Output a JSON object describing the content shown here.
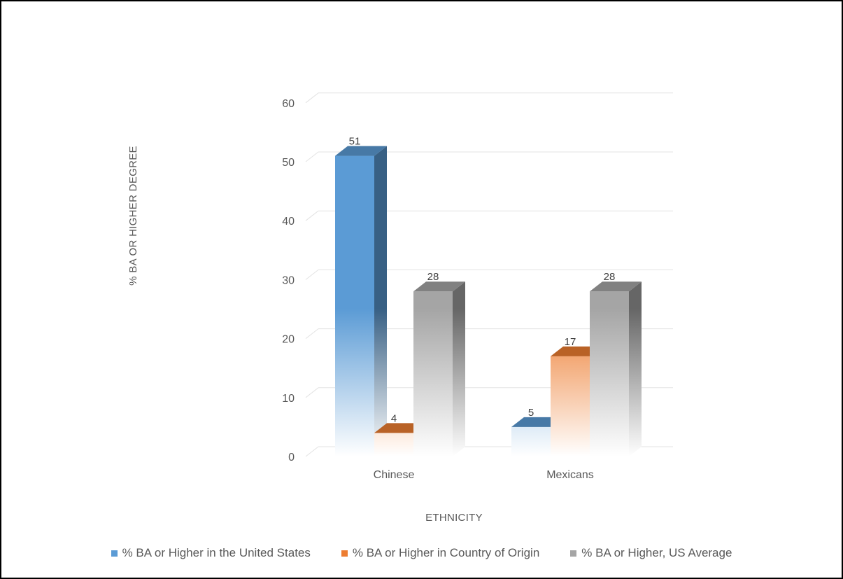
{
  "chart_data": {
    "type": "bar",
    "style": "3d-clustered-column",
    "title": "",
    "xlabel": "ETHNICITY",
    "ylabel": "% BA OR HIGHER DEGREE",
    "ylim": [
      0,
      60
    ],
    "yticks": [
      0,
      10,
      20,
      30,
      40,
      50,
      60
    ],
    "grid": true,
    "legend_position": "bottom",
    "categories": [
      "Chinese",
      "Mexicans"
    ],
    "series": [
      {
        "name": "% BA or Higher in the United States",
        "values": [
          51,
          5
        ],
        "color": "#5b9bd5"
      },
      {
        "name": "% BA or Higher in Country of Origin",
        "values": [
          4,
          17
        ],
        "color": "#ed7d31"
      },
      {
        "name": "% BA or Higher, US Average",
        "values": [
          28,
          28
        ],
        "color": "#a5a5a5"
      }
    ]
  }
}
